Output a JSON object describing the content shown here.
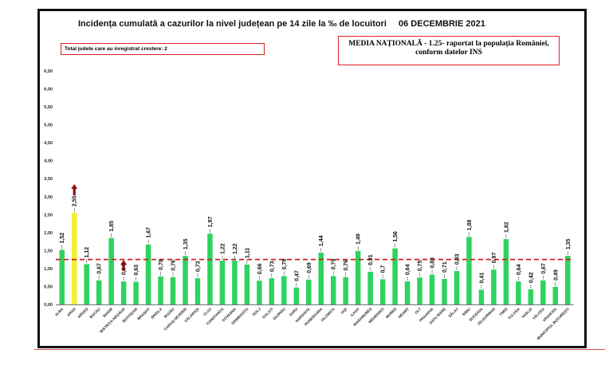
{
  "header": {
    "title": "Incidența cumulată a cazurilor la nivel județean pe 14 zile la ‰ de locuitori",
    "date": "06 DECEMBRIE 2021"
  },
  "notes": {
    "counties_increase": "Total judete care au inregistrat crestere: 2",
    "national_average": "MEDIA NAȚIONALĂ - 1.25- raportat la populația României, conform datelor INS"
  },
  "colors": {
    "bar": "#2ed35f",
    "highlight_bar": "#f2f230",
    "average_line": "#d11f1f",
    "arrow": "#8b1010"
  },
  "chart_data": {
    "type": "bar",
    "categories": [
      "ALBA",
      "ARAD",
      "ARGEȘ",
      "BACĂU",
      "BIHOR",
      "BISTRIȚA-NĂSĂUD",
      "BOTOȘANI",
      "BRAȘOV",
      "BRĂILA",
      "BUZĂU",
      "CARAȘ-SEVERIN",
      "CĂLĂRAȘI",
      "CLUJ",
      "CONSTANȚA",
      "COVASNA",
      "DÂMBOVIȚA",
      "DOLJ",
      "GALAȚI",
      "GIURGIU",
      "GORJ",
      "HARGHITA",
      "HUNEDOARA",
      "IALOMIȚA",
      "IAȘI",
      "ILFOV",
      "MARAMUREȘ",
      "MEHEDINȚI",
      "MUREȘ",
      "NEAMȚ",
      "OLT",
      "PRAHOVA",
      "SATU MARE",
      "SĂLAJ",
      "SIBIU",
      "SUCEAVA",
      "TELEORMAN",
      "TIMIȘ",
      "TULCEA",
      "VASLUI",
      "VÂLCEA",
      "VRANCEA",
      "MUNICIPIUL BUCUREȘTI"
    ],
    "values": [
      1.52,
      2.55,
      1.12,
      0.67,
      1.85,
      0.64,
      0.63,
      1.67,
      0.78,
      0.76,
      1.35,
      0.73,
      1.97,
      1.22,
      1.22,
      1.11,
      0.66,
      0.73,
      0.79,
      0.47,
      0.69,
      1.44,
      0.79,
      0.76,
      1.49,
      0.91,
      0.7,
      1.56,
      0.64,
      0.75,
      0.83,
      0.71,
      0.93,
      1.88,
      0.41,
      0.97,
      1.82,
      0.64,
      0.42,
      0.67,
      0.49,
      1.35
    ],
    "labels": [
      "1,52",
      "2,55",
      "1,12",
      "0,67",
      "1,85",
      "0,64",
      "0,63",
      "1,67",
      "0,78",
      "0,76",
      "1,35",
      "0,73",
      "1,97",
      "1,22",
      "1,22",
      "1,11",
      "0,66",
      "0,73",
      "0,79",
      "0,47",
      "0,69",
      "1,44",
      "0,79",
      "0,76",
      "1,49",
      "0,91",
      "0,7",
      "1,56",
      "0,64",
      "0,75",
      "0,83",
      "0,71",
      "0,93",
      "1,88",
      "0,41",
      "0,97",
      "1,82",
      "0,64",
      "0,42",
      "0,67",
      "0,49",
      "1,35"
    ],
    "highlight_index": 1,
    "arrow_indices": [
      1,
      5
    ],
    "average": 1.25,
    "yticks": [
      "0,00",
      "0,50",
      "1,00",
      "1,50",
      "2,00",
      "2,50",
      "3,00",
      "3,50",
      "4,00",
      "4,50",
      "5,00",
      "5,50",
      "6,00",
      "6,50"
    ],
    "ylim": [
      0,
      6.5
    ]
  }
}
